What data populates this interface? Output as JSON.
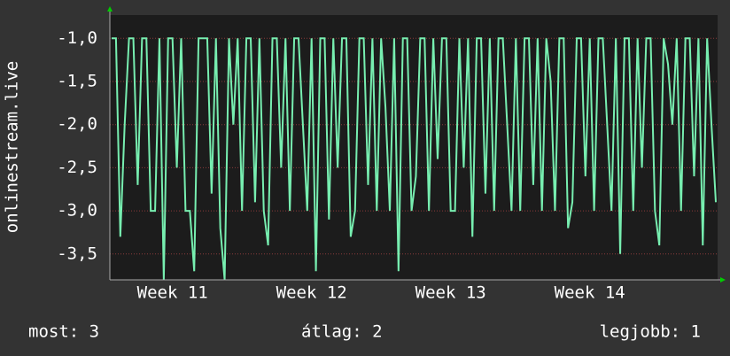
{
  "chart_data": {
    "type": "line",
    "y_label": "onlinestream.live",
    "categories": [
      null,
      null,
      null,
      null,
      null,
      null,
      null,
      null,
      null,
      null,
      null,
      null,
      null,
      null,
      "Week 11",
      null,
      null,
      null,
      null,
      null,
      null,
      null,
      null,
      null,
      null,
      null,
      null,
      null,
      null,
      null,
      null,
      null,
      null,
      null,
      null,
      null,
      null,
      null,
      null,
      null,
      null,
      null,
      null,
      null,
      null,
      null,
      "Week 12",
      null,
      null,
      null,
      null,
      null,
      null,
      null,
      null,
      null,
      null,
      null,
      null,
      null,
      null,
      null,
      null,
      null,
      null,
      null,
      null,
      null,
      null,
      null,
      null,
      null,
      null,
      null,
      null,
      null,
      null,
      null,
      "Week 13",
      null,
      null,
      null,
      null,
      null,
      null,
      null,
      null,
      null,
      null,
      null,
      null,
      null,
      null,
      null,
      null,
      null,
      null,
      null,
      null,
      null,
      null,
      null,
      null,
      null,
      null,
      null,
      null,
      null,
      null,
      null,
      "Week 14",
      null,
      null,
      null,
      null,
      null,
      null,
      null,
      null,
      null,
      null,
      null,
      null,
      null,
      null,
      null,
      null,
      null,
      null,
      null,
      null,
      null,
      null,
      null,
      null,
      null,
      null,
      null,
      null,
      null
    ],
    "series": [
      {
        "color": "#77eeb0",
        "values": [
          -1,
          -1,
          -3.3,
          -2,
          -1,
          -1,
          -2.7,
          -1,
          -1,
          -3,
          -3,
          -1,
          -3.8,
          -1,
          -1,
          -2.5,
          -1,
          -3,
          -3,
          -3.7,
          -1,
          -1,
          -1,
          -2.8,
          -1,
          -3.2,
          -3.8,
          -1,
          -2,
          -1,
          -3,
          -1,
          -1,
          -2.9,
          -1,
          -3,
          -3.4,
          -1,
          -1,
          -2.5,
          -1,
          -3,
          -1,
          -1,
          -2,
          -3,
          -1,
          -3.7,
          -1,
          -1,
          -3.1,
          -1,
          -2.5,
          -1,
          -1,
          -3.3,
          -3,
          -1,
          -1,
          -2.7,
          -1,
          -3,
          -1,
          -1.8,
          -3,
          -1,
          -3.7,
          -1,
          -1,
          -3,
          -2.6,
          -1,
          -1,
          -3,
          -1,
          -2.4,
          -1,
          -1,
          -3,
          -3,
          -1,
          -2.5,
          -1,
          -3.3,
          -1,
          -1,
          -2.8,
          -1,
          -3,
          -1,
          -1,
          -2,
          -3,
          -1,
          -3,
          -1,
          -1,
          -2.7,
          -1,
          -3,
          -1,
          -1.5,
          -3,
          -1,
          -1,
          -3.2,
          -2.9,
          -1,
          -1,
          -2.6,
          -1,
          -3,
          -1,
          -1,
          -2,
          -3,
          -1,
          -3.5,
          -1,
          -1,
          -3,
          -1,
          -2.5,
          -1,
          -1,
          -3,
          -3.4,
          -1,
          -1.3,
          -2,
          -1,
          -3,
          -1,
          -1,
          -2.6,
          -1,
          -3.4,
          -1,
          -2,
          -2.9
        ]
      }
    ],
    "ylim": [
      -3.8,
      -0.73
    ],
    "yticks": [
      {
        "value": -3.5,
        "label": "-3,5"
      },
      {
        "value": -3,
        "label": "-3,0"
      },
      {
        "value": -2.5,
        "label": "-2,5"
      },
      {
        "value": -2,
        "label": "-2,0"
      },
      {
        "value": -1.5,
        "label": "-1,5"
      },
      {
        "value": -1,
        "label": "-1,0"
      }
    ],
    "grid": true,
    "stats": [
      "most: 3",
      "átlag: 2",
      "legjobb: 1"
    ]
  }
}
